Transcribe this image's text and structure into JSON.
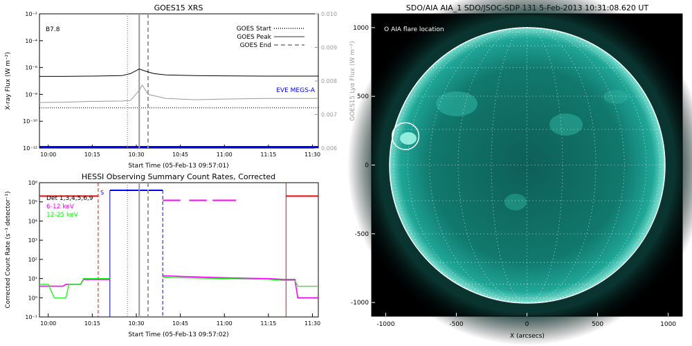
{
  "colors": {
    "goes_primary": "#000000",
    "goes_secondary": "#999999",
    "eve": "#0000ff",
    "red": "#ff0000",
    "magenta": "#ff00ff",
    "green": "#00ff00",
    "blue": "#0000ff",
    "aia_disk": "#17a595",
    "aia_bg": "#000000"
  },
  "chart_data": [
    {
      "type": "line",
      "title": "GOES15 XRS",
      "class_label": "B7.8",
      "xlabel": "Start Time (05-Feb-13 09:57:01)",
      "ylabel": "X-ray Flux (W m⁻²)",
      "ylabel_right": "GOES15 Lyα Flux (W m⁻²)",
      "xlim": [
        "09:57",
        "11:32"
      ],
      "x_ticks": [
        "10:00",
        "10:15",
        "10:30",
        "10:45",
        "11:00",
        "11:15",
        "11:30"
      ],
      "y_scale": "log",
      "ylim": [
        1e-12,
        0.01
      ],
      "y_ticks": [
        "10⁻¹²",
        "10⁻¹⁰",
        "10⁻⁸",
        "10⁻⁶",
        "10⁻⁴",
        "10⁻²"
      ],
      "ylim_right": [
        0.006,
        0.01
      ],
      "y_ticks_right": [
        "0.006",
        "0.007",
        "0.008",
        "0.009",
        "0.010"
      ],
      "legend_position": "top-right",
      "legend": [
        {
          "label": "GOES Start",
          "style": "dotted"
        },
        {
          "label": "GOES Peak",
          "style": "solid"
        },
        {
          "label": "GOES End",
          "style": "dashed"
        }
      ],
      "event_lines": {
        "start": "10:27",
        "peak": "10:31",
        "end": "10:34"
      },
      "eve_label": "EVE MEGS-A",
      "eve_level": 1.2e-12,
      "lya_level": 0.0072,
      "series": [
        {
          "label_in_chart": false,
          "x": [
            "09:57",
            "10:05",
            "10:15",
            "10:25",
            "10:28",
            "10:30",
            "10:31",
            "10:33",
            "10:36",
            "10:40",
            "10:50",
            "11:00",
            "11:15",
            "11:32"
          ],
          "y": [
            2.2e-07,
            2.2e-07,
            2.3e-07,
            2.5e-07,
            3.5e-07,
            6e-07,
            7.8e-07,
            5.5e-07,
            3.5e-07,
            2.8e-07,
            2.5e-07,
            2.4e-07,
            2.3e-07,
            2.3e-07
          ]
        },
        {
          "label_in_chart": false,
          "x": [
            "09:57",
            "10:05",
            "10:15",
            "10:25",
            "10:28",
            "10:31",
            "10:32",
            "10:34",
            "10:40",
            "10:50",
            "11:00",
            "11:15",
            "11:32"
          ],
          "y": [
            2.5e-09,
            2.6e-09,
            3e-09,
            3.2e-09,
            3.5e-09,
            2e-08,
            5e-08,
            1e-08,
            5e-09,
            4e-09,
            4.5e-09,
            5e-09,
            5e-09
          ]
        }
      ]
    },
    {
      "type": "line",
      "title": "HESSI Observing Summary Count Rates, Corrected",
      "xlabel": "Start Time (05-Feb-13 09:57:02)",
      "ylabel": "Corrected Count Rate (s⁻¹ detector⁻¹)",
      "xlim": [
        "09:57",
        "11:32"
      ],
      "x_ticks": [
        "10:00",
        "10:15",
        "10:30",
        "10:45",
        "11:00",
        "11:15",
        "11:30"
      ],
      "y_scale": "log",
      "ylim": [
        0.1,
        1000000.0
      ],
      "y_ticks": [
        "10⁻¹",
        "10⁰",
        "10¹",
        "10²",
        "10³",
        "10⁴",
        "10⁵",
        "10⁶"
      ],
      "legend_position": "top-left",
      "legend": [
        {
          "label": "Det 1,3,4,5,6,9",
          "color": "#000000"
        },
        {
          "label": "6-12 keV",
          "color": "#ff00ff"
        },
        {
          "label": "12-25 keV",
          "color": "#00ff00"
        }
      ],
      "s_marker": "S",
      "event_lines": {
        "start": "10:27",
        "peak": "10:31",
        "end": "10:34"
      },
      "red_dashed": "10:17",
      "red_solid": "11:21",
      "blue_solid": "10:21",
      "blue_dashed": "10:39",
      "blue_top_level": 400000.0,
      "red_level": 200000.0,
      "magenta_dash_segments": [
        [
          "10:39",
          "10:45"
        ],
        [
          "10:48",
          "10:54"
        ],
        [
          "10:56",
          "11:04"
        ]
      ],
      "magenta_dash_level": 120000.0,
      "series": [
        {
          "label_in_chart": false,
          "segments": [
            {
              "x": [
                "09:57",
                "10:00",
                "10:05",
                "10:06",
                "10:11",
                "10:12",
                "10:21"
              ],
              "y": [
                4,
                4,
                4,
                5,
                5,
                9,
                9
              ]
            },
            {
              "x": [
                "10:39",
                "10:45",
                "11:00",
                "11:15",
                "11:20",
                "11:24",
                "11:25",
                "11:32"
              ],
              "y": [
                14,
                13,
                11,
                10,
                9,
                9,
                1,
                1
              ]
            }
          ]
        },
        {
          "label_in_chart": false,
          "segments": [
            {
              "x": [
                "09:57",
                "10:00",
                "10:02",
                "10:06",
                "10:07",
                "10:11",
                "10:12",
                "10:21"
              ],
              "y": [
                5,
                5,
                1,
                1,
                5,
                5,
                10,
                10
              ]
            },
            {
              "x": [
                "10:39",
                "10:45",
                "11:00",
                "11:15",
                "11:20",
                "11:24",
                "11:25",
                "11:32"
              ],
              "y": [
                12,
                11,
                10,
                9,
                8,
                8,
                4,
                4
              ]
            }
          ]
        }
      ]
    },
    {
      "type": "scatter",
      "title": "SDO/AIA AIA_1 SDO/JSOC-SDP 131   5-Feb-2013 10:31:08.620 UT",
      "xlabel": "X (arcsecs)",
      "ylabel": "",
      "xlim": [
        -1100,
        1100
      ],
      "ylim": [
        -1100,
        1100
      ],
      "x_ticks": [
        -1000,
        -500,
        0,
        500,
        1000
      ],
      "y_ticks": [
        -1000,
        -500,
        0,
        500,
        1000
      ],
      "solar_radius": 975,
      "annotation": "O AIA flare location",
      "flare_location": {
        "x": -860,
        "y": 210,
        "radius": 95
      }
    }
  ]
}
